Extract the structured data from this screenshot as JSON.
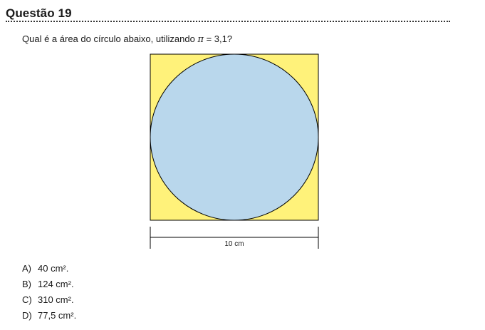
{
  "question": {
    "title": "Questão 19",
    "prompt_before": "Qual é a área do círculo abaixo, utilizando ",
    "pi_symbol": "π",
    "prompt_after": " = 3,1?"
  },
  "figure": {
    "dimension_label": "10 cm",
    "colors": {
      "square_fill": "#fff27a",
      "circle_fill": "#b9d7ec",
      "stroke": "#000000"
    }
  },
  "options": [
    {
      "letter": "A)",
      "text": "40 cm²."
    },
    {
      "letter": "B)",
      "text": "124 cm²."
    },
    {
      "letter": "C)",
      "text": "310 cm²."
    },
    {
      "letter": "D)",
      "text": "77,5 cm²."
    }
  ]
}
